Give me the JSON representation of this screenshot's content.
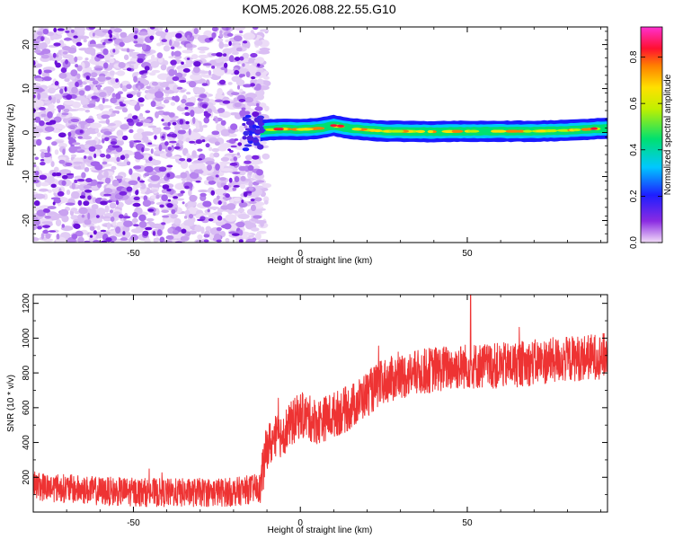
{
  "title": "KOM5.2026.088.22.55.G10",
  "chart_data": [
    {
      "type": "heatmap",
      "title": "",
      "xlabel": "Height of straight line (km)",
      "ylabel": "Frequency (Hz)",
      "xlim": [
        -80,
        92
      ],
      "ylim": [
        -25,
        24
      ],
      "xticks": [
        -50,
        0,
        50
      ],
      "yticks": [
        -20,
        -10,
        0,
        10,
        20
      ],
      "colorbar": {
        "label": "Normalized spectral amplitude",
        "range": [
          0,
          0.93
        ],
        "ticks": [
          0.0,
          0.2,
          0.4,
          0.6,
          0.8
        ],
        "colormap": "rainbow (violet-blue-cyan-green-yellow-orange-red-magenta)"
      },
      "noise_region": {
        "x_range": [
          -80,
          -12
        ],
        "description": "scattered low-amplitude violet noise"
      },
      "signal_band": {
        "x_range": [
          -12,
          92
        ],
        "center_frequency": [
          [
            -15,
            0.0
          ],
          [
            -10,
            0.6
          ],
          [
            -5,
            0.8
          ],
          [
            0,
            0.7
          ],
          [
            5,
            0.9
          ],
          [
            10,
            1.6
          ],
          [
            15,
            0.9
          ],
          [
            20,
            0.6
          ],
          [
            25,
            0.3
          ],
          [
            30,
            0.3
          ],
          [
            40,
            0.2
          ],
          [
            50,
            0.3
          ],
          [
            60,
            0.3
          ],
          [
            70,
            0.3
          ],
          [
            80,
            0.5
          ],
          [
            90,
            0.9
          ]
        ],
        "half_width_hz": 1.5
      }
    },
    {
      "type": "line",
      "title": "",
      "xlabel": "Height of straight line (km)",
      "ylabel": "SNR (10 * v/v)",
      "xlim": [
        -80,
        92
      ],
      "ylim": [
        0,
        1250
      ],
      "xticks": [
        -50,
        0,
        50
      ],
      "yticks": [
        200,
        400,
        600,
        800,
        1000,
        1200
      ],
      "series": [
        {
          "color": "#ee3333",
          "trend": [
            [
              -80,
              150
            ],
            [
              -60,
              120
            ],
            [
              -40,
              110
            ],
            [
              -20,
              115
            ],
            [
              -12,
              140
            ],
            [
              -10,
              380
            ],
            [
              -5,
              460
            ],
            [
              0,
              560
            ],
            [
              5,
              520
            ],
            [
              10,
              560
            ],
            [
              15,
              600
            ],
            [
              20,
              680
            ],
            [
              25,
              750
            ],
            [
              30,
              780
            ],
            [
              40,
              820
            ],
            [
              50,
              840
            ],
            [
              60,
              840
            ],
            [
              70,
              860
            ],
            [
              80,
              880
            ],
            [
              92,
              900
            ]
          ],
          "noise_amplitude": 110,
          "max_peak": [
            51,
            1250
          ]
        }
      ]
    }
  ]
}
